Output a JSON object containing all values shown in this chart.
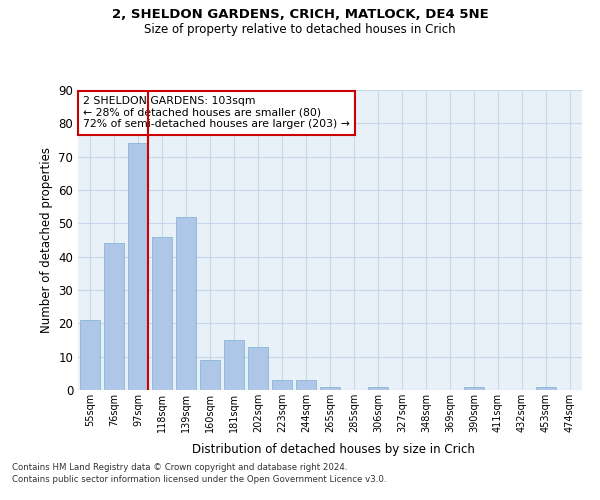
{
  "title_line1": "2, SHELDON GARDENS, CRICH, MATLOCK, DE4 5NE",
  "title_line2": "Size of property relative to detached houses in Crich",
  "xlabel": "Distribution of detached houses by size in Crich",
  "ylabel": "Number of detached properties",
  "footer_line1": "Contains HM Land Registry data © Crown copyright and database right 2024.",
  "footer_line2": "Contains public sector information licensed under the Open Government Licence v3.0.",
  "bar_labels": [
    "55sqm",
    "76sqm",
    "97sqm",
    "118sqm",
    "139sqm",
    "160sqm",
    "181sqm",
    "202sqm",
    "223sqm",
    "244sqm",
    "265sqm",
    "285sqm",
    "306sqm",
    "327sqm",
    "348sqm",
    "369sqm",
    "390sqm",
    "411sqm",
    "432sqm",
    "453sqm",
    "474sqm"
  ],
  "bar_values": [
    21,
    44,
    74,
    46,
    52,
    9,
    15,
    13,
    3,
    3,
    1,
    0,
    1,
    0,
    0,
    0,
    1,
    0,
    0,
    1,
    0
  ],
  "bar_color": "#aec6e8",
  "bar_edge_color": "#7bafd4",
  "grid_color": "#c8d8ea",
  "bg_color": "#e8f0f8",
  "vline_color": "#cc0000",
  "annotation_box_text": "2 SHELDON GARDENS: 103sqm\n← 28% of detached houses are smaller (80)\n72% of semi-detached houses are larger (203) →",
  "annotation_box_color": "#cc0000",
  "ylim": [
    0,
    90
  ],
  "yticks": [
    0,
    10,
    20,
    30,
    40,
    50,
    60,
    70,
    80,
    90
  ]
}
